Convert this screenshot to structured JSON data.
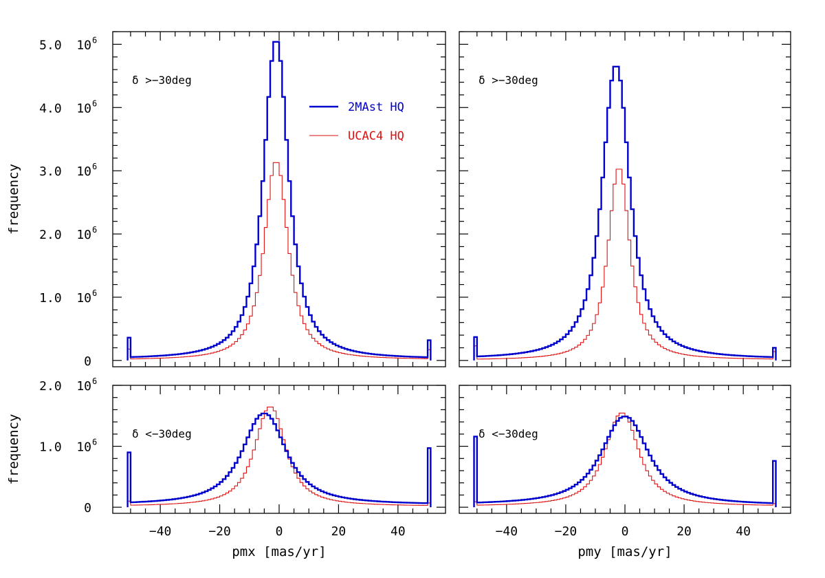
{
  "chart_data": [
    {
      "type": "line",
      "panel": "top-left",
      "annotation": "δ >−30deg",
      "xlabel": "",
      "ylabel": "frequency",
      "xlim": [
        -56,
        56
      ],
      "ylim": [
        -100000,
        5200000
      ],
      "x_ticks": [
        -40,
        -20,
        0,
        20,
        40
      ],
      "y_ticks": [
        {
          "value": 0,
          "label": "0",
          "sup": ""
        },
        {
          "value": 1000000,
          "label": "1.0  10",
          "sup": "6"
        },
        {
          "value": 2000000,
          "label": "2.0  10",
          "sup": "6"
        },
        {
          "value": 3000000,
          "label": "3.0  10",
          "sup": "6"
        },
        {
          "value": 4000000,
          "label": "4.0  10",
          "sup": "6"
        },
        {
          "value": 5000000,
          "label": "5.0  10",
          "sup": "6"
        }
      ],
      "legend": {
        "placement": "top-right",
        "entries": [
          "2MAst HQ",
          "UCAC4 HQ"
        ]
      },
      "series": [
        {
          "name": "2MAst HQ",
          "color": "#0000cc",
          "peak_x": -1,
          "peak": 5070000,
          "width": 5.0,
          "tail_left": 20000,
          "tail_right": 20000,
          "edge_left": 360000,
          "edge_right": 320000
        },
        {
          "name": "UCAC4 HQ",
          "color": "#dd1111",
          "peak_x": -1,
          "peak": 3150000,
          "width": 4.8,
          "tail_left": 5000,
          "tail_right": 10000,
          "edge_left": 180000,
          "edge_right": 170000
        }
      ]
    },
    {
      "type": "line",
      "panel": "top-right",
      "annotation": "δ >−30deg",
      "xlabel": "",
      "ylabel": "",
      "xlim": [
        -56,
        56
      ],
      "ylim": [
        -100000,
        5200000
      ],
      "x_ticks": [
        -40,
        -20,
        0,
        20,
        40
      ],
      "y_ticks": [],
      "series": [
        {
          "name": "2MAst HQ",
          "color": "#0000cc",
          "peak_x": -3,
          "peak": 4670000,
          "width": 5.6,
          "tail_left": 20000,
          "tail_right": 20000,
          "edge_left": 370000,
          "edge_right": 200000
        },
        {
          "name": "UCAC4 HQ",
          "color": "#dd1111",
          "peak_x": -2,
          "peak": 3050000,
          "width": 4.4,
          "tail_left": 5000,
          "tail_right": 10000,
          "edge_left": 230000,
          "edge_right": 140000
        }
      ]
    },
    {
      "type": "line",
      "panel": "bottom-left",
      "annotation": "δ <−30deg",
      "xlabel": "pmx [mas/yr]",
      "ylabel": "frequency",
      "xlim": [
        -56,
        56
      ],
      "ylim": [
        -100000,
        2000000
      ],
      "x_ticks": [
        -40,
        -20,
        0,
        20,
        40
      ],
      "x_tick_labels": [
        "−40",
        "−20",
        "0",
        "20",
        "40"
      ],
      "y_ticks": [
        {
          "value": 0,
          "label": "0",
          "sup": ""
        },
        {
          "value": 1000000,
          "label": "1.0  10",
          "sup": "6"
        },
        {
          "value": 2000000,
          "label": "2.0  10",
          "sup": "6"
        }
      ],
      "series": [
        {
          "name": "2MAst HQ",
          "color": "#0000cc",
          "peak_x": -5,
          "peak": 1540000,
          "width": 8.8,
          "tail_left": 40000,
          "tail_right": 40000,
          "edge_left": 900000,
          "edge_right": 970000
        },
        {
          "name": "UCAC4 HQ",
          "color": "#dd1111",
          "peak_x": -3,
          "peak": 1650000,
          "width": 6.2,
          "tail_left": 15000,
          "tail_right": 15000,
          "edge_left": 100000,
          "edge_right": 70000
        }
      ]
    },
    {
      "type": "line",
      "panel": "bottom-right",
      "annotation": "δ <−30deg",
      "xlabel": "pmy [mas/yr]",
      "ylabel": "",
      "xlim": [
        -56,
        56
      ],
      "ylim": [
        -100000,
        2000000
      ],
      "x_ticks": [
        -40,
        -20,
        0,
        20,
        40
      ],
      "x_tick_labels": [
        "−40",
        "−20",
        "0",
        "20",
        "40"
      ],
      "y_ticks": [],
      "series": [
        {
          "name": "2MAst HQ",
          "color": "#0000cc",
          "peak_x": 0,
          "peak": 1490000,
          "width": 9.5,
          "tail_left": 40000,
          "tail_right": 30000,
          "edge_left": 1160000,
          "edge_right": 760000
        },
        {
          "name": "UCAC4 HQ",
          "color": "#dd1111",
          "peak_x": -1,
          "peak": 1550000,
          "width": 6.8,
          "tail_left": 15000,
          "tail_right": 15000,
          "edge_left": 90000,
          "edge_right": 60000
        }
      ]
    }
  ]
}
